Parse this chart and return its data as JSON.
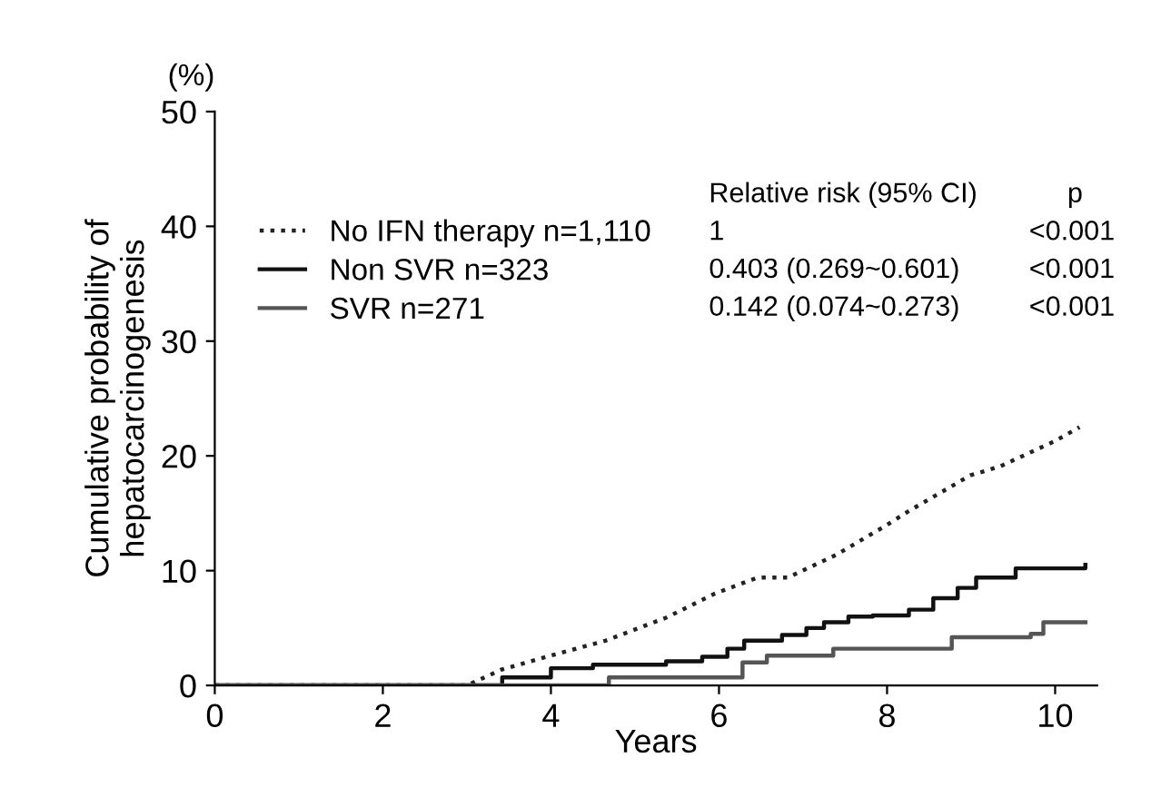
{
  "chart_data": {
    "type": "line",
    "xlabel": "Years",
    "ylabel": "Cumulative probability of\nhepatocarcinogenesis",
    "xlim": [
      0,
      10.5
    ],
    "xticks": [
      0,
      2,
      4,
      6,
      8,
      10
    ],
    "ylim": [
      0,
      50
    ],
    "yticks": [
      0,
      10,
      20,
      30,
      40,
      50
    ],
    "grid": false,
    "legend": "top left",
    "annotations": [
      "(%)",
      "Relative risk (95% CI)",
      "p",
      "1",
      "<0.001",
      "0.403 (0.269~0.601)",
      "<0.001",
      "0.142 (0.074~0.273)",
      "<0.001"
    ],
    "series": [
      {
        "name": "No IFN therapy n=1,110",
        "line_style": "dotted",
        "color": "#222222",
        "x": [
          0,
          3.0,
          3.42,
          4.0,
          4.65,
          5.37,
          5.95,
          6.46,
          6.82,
          7.4,
          7.98,
          8.26,
          8.99,
          9.35,
          10.0,
          10.29
        ],
        "values": [
          0,
          0,
          1.4,
          2.6,
          3.9,
          5.9,
          8.0,
          9.4,
          9.4,
          11.4,
          13.9,
          15.2,
          18.3,
          19.1,
          21.3,
          22.5
        ]
      },
      {
        "name": "Non SVR n=323",
        "type": "step",
        "line_style": "solid",
        "color": "#111111",
        "x": [
          0,
          3.42,
          4.0,
          4.5,
          5.37,
          5.8,
          6.1,
          6.3,
          6.75,
          7.04,
          7.25,
          7.54,
          7.83,
          8.26,
          8.55,
          8.84,
          9.06,
          9.53,
          10.36
        ],
        "values": [
          0,
          0.7,
          1.5,
          1.8,
          2.1,
          2.5,
          3.2,
          3.9,
          4.4,
          5.0,
          5.5,
          6.0,
          6.1,
          6.6,
          7.6,
          8.5,
          9.4,
          10.2,
          10.5
        ]
      },
      {
        "name": "SVR n=271",
        "type": "step",
        "line_style": "solid",
        "color": "#555555",
        "x": [
          0,
          4.69,
          6.28,
          6.57,
          7.36,
          8.77,
          9.71,
          9.86,
          10.36
        ],
        "values": [
          0,
          0.7,
          2.0,
          2.6,
          3.2,
          4.2,
          4.5,
          5.5,
          5.5
        ]
      }
    ]
  }
}
